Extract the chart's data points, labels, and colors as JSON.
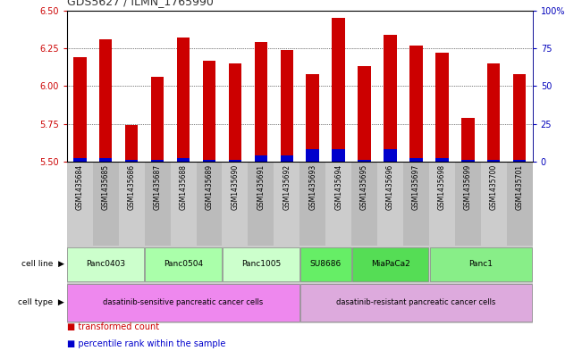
{
  "title": "GDS5627 / ILMN_1765990",
  "samples": [
    "GSM1435684",
    "GSM1435685",
    "GSM1435686",
    "GSM1435687",
    "GSM1435688",
    "GSM1435689",
    "GSM1435690",
    "GSM1435691",
    "GSM1435692",
    "GSM1435693",
    "GSM1435694",
    "GSM1435695",
    "GSM1435696",
    "GSM1435697",
    "GSM1435698",
    "GSM1435699",
    "GSM1435700",
    "GSM1435701"
  ],
  "red_values": [
    6.19,
    6.31,
    5.74,
    6.06,
    6.32,
    6.17,
    6.15,
    6.29,
    6.24,
    6.08,
    6.45,
    6.13,
    6.34,
    6.27,
    6.22,
    5.79,
    6.15,
    6.08
  ],
  "blue_values": [
    0.02,
    0.02,
    0.01,
    0.01,
    0.02,
    0.01,
    0.01,
    0.04,
    0.04,
    0.08,
    0.08,
    0.01,
    0.08,
    0.02,
    0.02,
    0.01,
    0.01,
    0.01
  ],
  "bar_bottom": 5.5,
  "ylim_left": [
    5.5,
    6.5
  ],
  "ylim_right": [
    0,
    100
  ],
  "yticks_left": [
    5.5,
    5.75,
    6.0,
    6.25,
    6.5
  ],
  "yticks_right": [
    0,
    25,
    50,
    75,
    100
  ],
  "ytick_labels_right": [
    "0",
    "25",
    "50",
    "75",
    "100%"
  ],
  "grid_values": [
    5.75,
    6.0,
    6.25
  ],
  "cell_lines": [
    {
      "label": "Panc0403",
      "start": 0,
      "end": 2,
      "color": "#ccffcc"
    },
    {
      "label": "Panc0504",
      "start": 3,
      "end": 5,
      "color": "#aaffaa"
    },
    {
      "label": "Panc1005",
      "start": 6,
      "end": 8,
      "color": "#ccffcc"
    },
    {
      "label": "SU8686",
      "start": 9,
      "end": 10,
      "color": "#66ee66"
    },
    {
      "label": "MiaPaCa2",
      "start": 11,
      "end": 13,
      "color": "#55dd55"
    },
    {
      "label": "Panc1",
      "start": 14,
      "end": 17,
      "color": "#88ee88"
    }
  ],
  "cell_types": [
    {
      "label": "dasatinib-sensitive pancreatic cancer cells",
      "start": 0,
      "end": 8,
      "color": "#ee88ee"
    },
    {
      "label": "dasatinib-resistant pancreatic cancer cells",
      "start": 9,
      "end": 17,
      "color": "#ddaadd"
    }
  ],
  "legend_items": [
    {
      "color": "#cc0000",
      "label": "transformed count"
    },
    {
      "color": "#0000cc",
      "label": "percentile rank within the sample"
    }
  ],
  "bar_color_red": "#cc0000",
  "bar_color_blue": "#0000cc",
  "axis_left_color": "#cc0000",
  "axis_right_color": "#0000bb",
  "title_color": "#333333",
  "bg_color": "#ffffff",
  "plot_bg_color": "#ffffff",
  "sample_row_color": "#bbbbbb"
}
